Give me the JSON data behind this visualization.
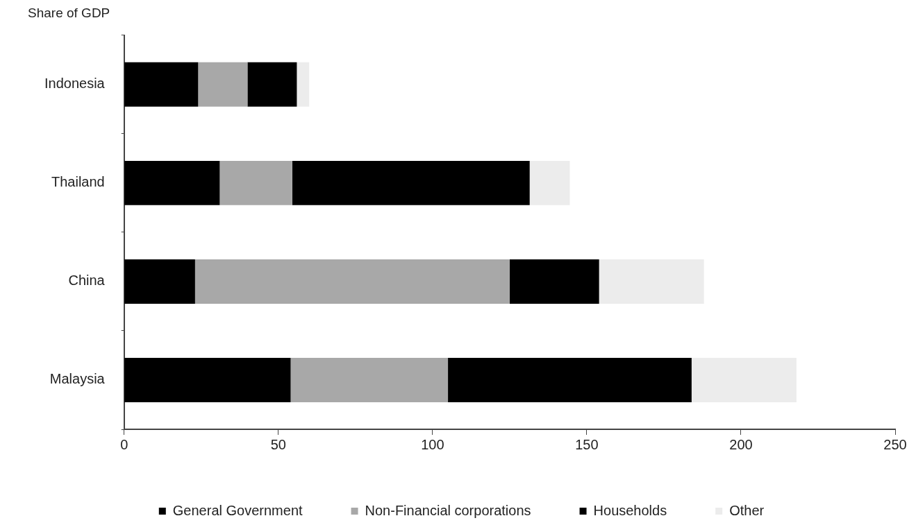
{
  "chart_data": {
    "type": "bar",
    "orientation": "horizontal",
    "stacked": true,
    "xlabel": "Share of GDP",
    "categories": [
      "Indonesia",
      "Thailand",
      "China",
      "Malaysia"
    ],
    "series": [
      {
        "name": "General Government",
        "color": "#000000",
        "values": [
          24,
          31,
          23,
          54
        ]
      },
      {
        "name": "Non-Financial corporations",
        "color": "#a8a8a8",
        "values": [
          16,
          23.5,
          102,
          51
        ]
      },
      {
        "name": "Households",
        "color": "#000000",
        "values": [
          16,
          77,
          29,
          79
        ]
      },
      {
        "name": "Other",
        "color": "#ececec",
        "values": [
          4,
          13,
          34,
          34
        ]
      }
    ],
    "xlim": [
      0,
      250
    ],
    "xticks": [
      0,
      50,
      100,
      150,
      200,
      250
    ],
    "grid": false,
    "legend": "bottom"
  }
}
